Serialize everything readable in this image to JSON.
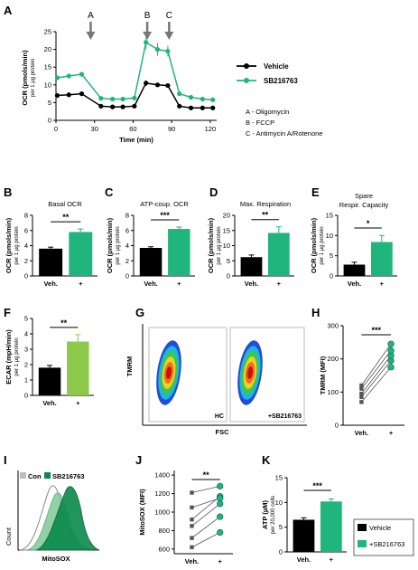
{
  "colors": {
    "vehicle": "#000000",
    "drug": "#1fb57c",
    "ecar_drug": "#8dc94a",
    "flow_box": "#bbbbbb",
    "hist_con": "#bdbdbd",
    "hist_drug": "#0a8a4a"
  },
  "legend": {
    "vehicle": "Vehicle",
    "drug": "SB216763"
  },
  "injections": {
    "labels": [
      "A",
      "B",
      "C"
    ],
    "notes": [
      "A - Oligomycin",
      "B - FCCP",
      "C - Antimycin A/Rotenone"
    ]
  },
  "chart_data": [
    {
      "id": "A",
      "panel_label": "A",
      "type": "line",
      "xlabel": "Time (min)",
      "ylabel": "OCR (pmols/min)",
      "ylabel_sub": "per 1 µg protein",
      "xlim": [
        0,
        125
      ],
      "ylim": [
        0,
        25
      ],
      "xticks": [
        0,
        30,
        60,
        90,
        120
      ],
      "yticks": [
        0,
        5,
        10,
        15,
        20,
        25
      ],
      "injection_times": [
        27,
        71,
        88
      ],
      "series": [
        {
          "name": "Vehicle",
          "x": [
            1,
            10,
            20,
            35,
            44,
            52,
            61,
            70,
            79,
            87,
            96,
            105,
            114,
            122
          ],
          "y": [
            7,
            7.2,
            7.5,
            4,
            3.8,
            3.8,
            4,
            10.5,
            10,
            9.8,
            4,
            3.5,
            3.5,
            3.5
          ],
          "err": [
            0.3,
            0.3,
            0.3,
            0.3,
            0.2,
            0.2,
            0.2,
            0.8,
            0.6,
            0.5,
            0.2,
            0.2,
            0.2,
            0.2
          ]
        },
        {
          "name": "SB216763",
          "x": [
            1,
            10,
            20,
            35,
            44,
            52,
            61,
            70,
            79,
            87,
            96,
            105,
            114,
            122
          ],
          "y": [
            12,
            12.5,
            13,
            6.2,
            6,
            6,
            6.3,
            22,
            20,
            19.5,
            7.5,
            6.5,
            6,
            5.8
          ],
          "err": [
            0.4,
            0.4,
            0.5,
            0.3,
            0.3,
            0.3,
            0.4,
            2,
            1.8,
            1.5,
            0.5,
            0.4,
            0.4,
            0.4
          ]
        }
      ]
    },
    {
      "id": "B",
      "panel_label": "B",
      "type": "bar",
      "title": "Basal OCR",
      "ylabel": "OCR (pmols/min)",
      "ylabel_sub": "per 1 µg protein",
      "ylim": [
        0,
        8
      ],
      "yticks": [
        0,
        2,
        4,
        6,
        8
      ],
      "categories": [
        "Veh.",
        "+"
      ],
      "values": [
        3.6,
        5.8
      ],
      "errors": [
        0.2,
        0.4
      ],
      "significance": "**"
    },
    {
      "id": "C",
      "panel_label": "C",
      "type": "bar",
      "title": "ATP-coup. OCR",
      "ylabel": "OCR (pmols/min)",
      "ylabel_sub": "per 1 µg protein",
      "ylim": [
        0,
        8
      ],
      "yticks": [
        0,
        2,
        4,
        6,
        8
      ],
      "categories": [
        "Veh.",
        "+"
      ],
      "values": [
        3.7,
        6.2
      ],
      "errors": [
        0.15,
        0.25
      ],
      "significance": "***"
    },
    {
      "id": "D",
      "panel_label": "D",
      "type": "bar",
      "title": "Max. Respiration",
      "ylabel": "OCR (pmols/min)",
      "ylabel_sub": "per 1 µg protein",
      "ylim": [
        0,
        20
      ],
      "yticks": [
        0,
        5,
        10,
        15,
        20
      ],
      "categories": [
        "Veh.",
        "+"
      ],
      "values": [
        6.2,
        14.2
      ],
      "errors": [
        0.7,
        2
      ],
      "significance": "**"
    },
    {
      "id": "E",
      "panel_label": "E",
      "type": "bar",
      "title": "Spare",
      "title2": "Respir. Capacity",
      "ylabel": "OCR (pmols/min)",
      "ylabel_sub": "per 1 µg protein",
      "ylim": [
        0,
        15
      ],
      "yticks": [
        0,
        5,
        10,
        15
      ],
      "categories": [
        "Veh.",
        "+"
      ],
      "values": [
        2.8,
        8.4
      ],
      "errors": [
        0.6,
        1.6
      ],
      "significance": "*"
    },
    {
      "id": "F",
      "panel_label": "F",
      "type": "bar",
      "ylabel": "ECAR (mpH/min)",
      "ylabel_sub": "per 1 µg protein",
      "ylim": [
        0,
        5
      ],
      "yticks": [
        0,
        1,
        2,
        3,
        4,
        5
      ],
      "categories": [
        "Veh.",
        "+"
      ],
      "values": [
        1.8,
        3.5
      ],
      "errors": [
        0.15,
        0.45
      ],
      "significance": "**"
    },
    {
      "id": "H",
      "panel_label": "H",
      "type": "scatter",
      "ylabel": "TMRM (MFI)",
      "ylim": [
        0,
        300
      ],
      "yticks": [
        0,
        100,
        200,
        300
      ],
      "categories": [
        "Veh.",
        "+"
      ],
      "pairs": [
        [
          70,
          175
        ],
        [
          85,
          195
        ],
        [
          95,
          210
        ],
        [
          110,
          225
        ],
        [
          120,
          245
        ]
      ],
      "significance": "***"
    },
    {
      "id": "J",
      "panel_label": "J",
      "type": "scatter",
      "ylabel": "MitoSOX (MFI)",
      "ylim": [
        550,
        1450
      ],
      "yticks": [
        600,
        800,
        1000,
        1200,
        1400
      ],
      "categories": [
        "Veh.",
        "+"
      ],
      "pairs": [
        [
          620,
          780
        ],
        [
          720,
          950
        ],
        [
          850,
          1090
        ],
        [
          920,
          1170
        ],
        [
          1050,
          1150
        ],
        [
          1210,
          1280
        ]
      ],
      "significance": "**"
    },
    {
      "id": "K",
      "panel_label": "K",
      "type": "bar",
      "ylabel": "ATP (µM)",
      "ylabel_sub": "per 20,000 cells",
      "ylim": [
        0,
        15
      ],
      "yticks": [
        0,
        5,
        10,
        15
      ],
      "categories": [
        "Veh.",
        "+"
      ],
      "values": [
        6.5,
        10.2
      ],
      "errors": [
        0.4,
        0.5
      ],
      "significance": "***"
    }
  ],
  "flow_G": {
    "panel_label": "G",
    "ylabel": "TMRM",
    "xlabel": "FSC",
    "gates": [
      "HC",
      "+SB216763"
    ]
  },
  "hist_I": {
    "panel_label": "I",
    "ylabel": "Count",
    "xlabel": "MitoSOX",
    "legend": [
      "Con",
      "SB216763"
    ]
  },
  "legend_K": [
    "Vehicle",
    "+SB216763"
  ]
}
